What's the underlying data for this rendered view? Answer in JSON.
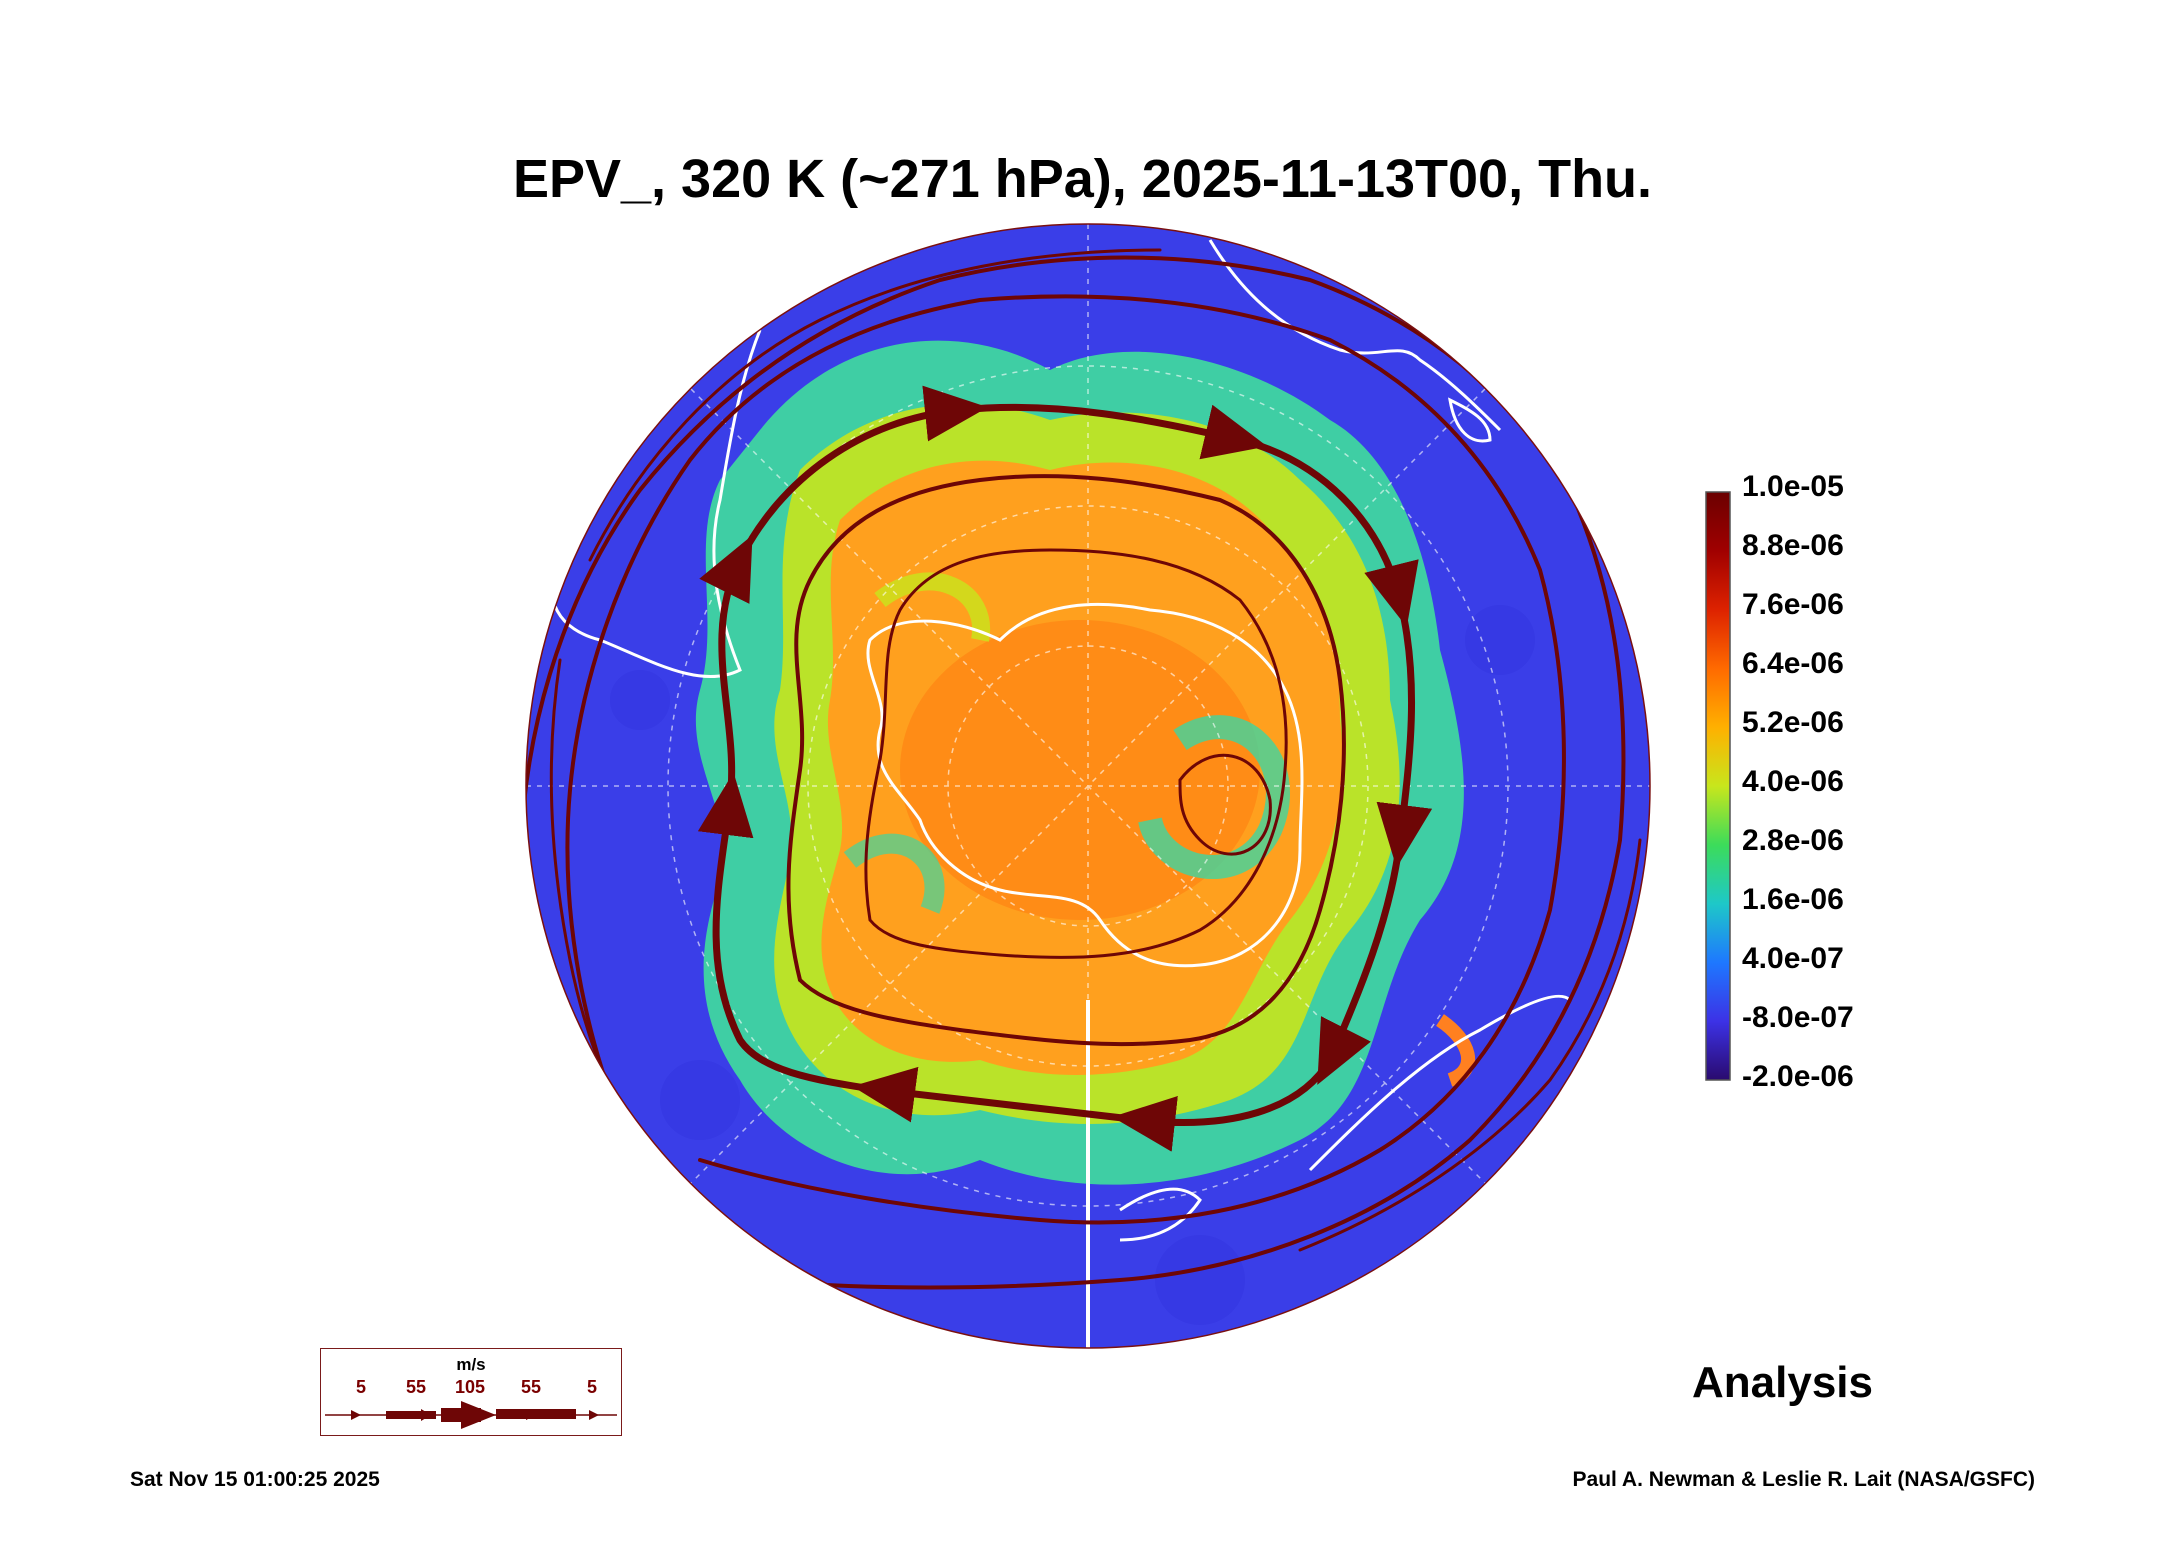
{
  "title": "EPV_, 320 K (~271 hPa), 2025-11-13T00, Thu.",
  "colorbar": {
    "labels": [
      "1.0e-05",
      "8.8e-06",
      "7.6e-06",
      "6.4e-06",
      "5.2e-06",
      "4.0e-06",
      "2.8e-06",
      "1.6e-06",
      "4.0e-07",
      "-8.0e-07",
      "-2.0e-06"
    ],
    "colors": [
      "#6b0000",
      "#a00000",
      "#dd2200",
      "#ff6a00",
      "#ffb000",
      "#c8e61c",
      "#3cdc5a",
      "#1ec8c8",
      "#1e78ff",
      "#3c32e6",
      "#2a0a6e"
    ]
  },
  "legend": {
    "unit": "m/s",
    "speeds": [
      "5",
      "55",
      "105",
      "55",
      "5"
    ]
  },
  "stamp": "Analysis",
  "timestamp": "Sat Nov 15 01:00:25 2025",
  "credit": "Paul A. Newman & Leslie R. Lait (NASA/GSFC)",
  "colors": {
    "background": "#3a3ee8",
    "streamline": "#6e0606",
    "coastline": "#ffffff",
    "low_pv": "#3a3ee8",
    "mid_pv": "#3fd6a0",
    "high_pv": "#f4a21e"
  }
}
